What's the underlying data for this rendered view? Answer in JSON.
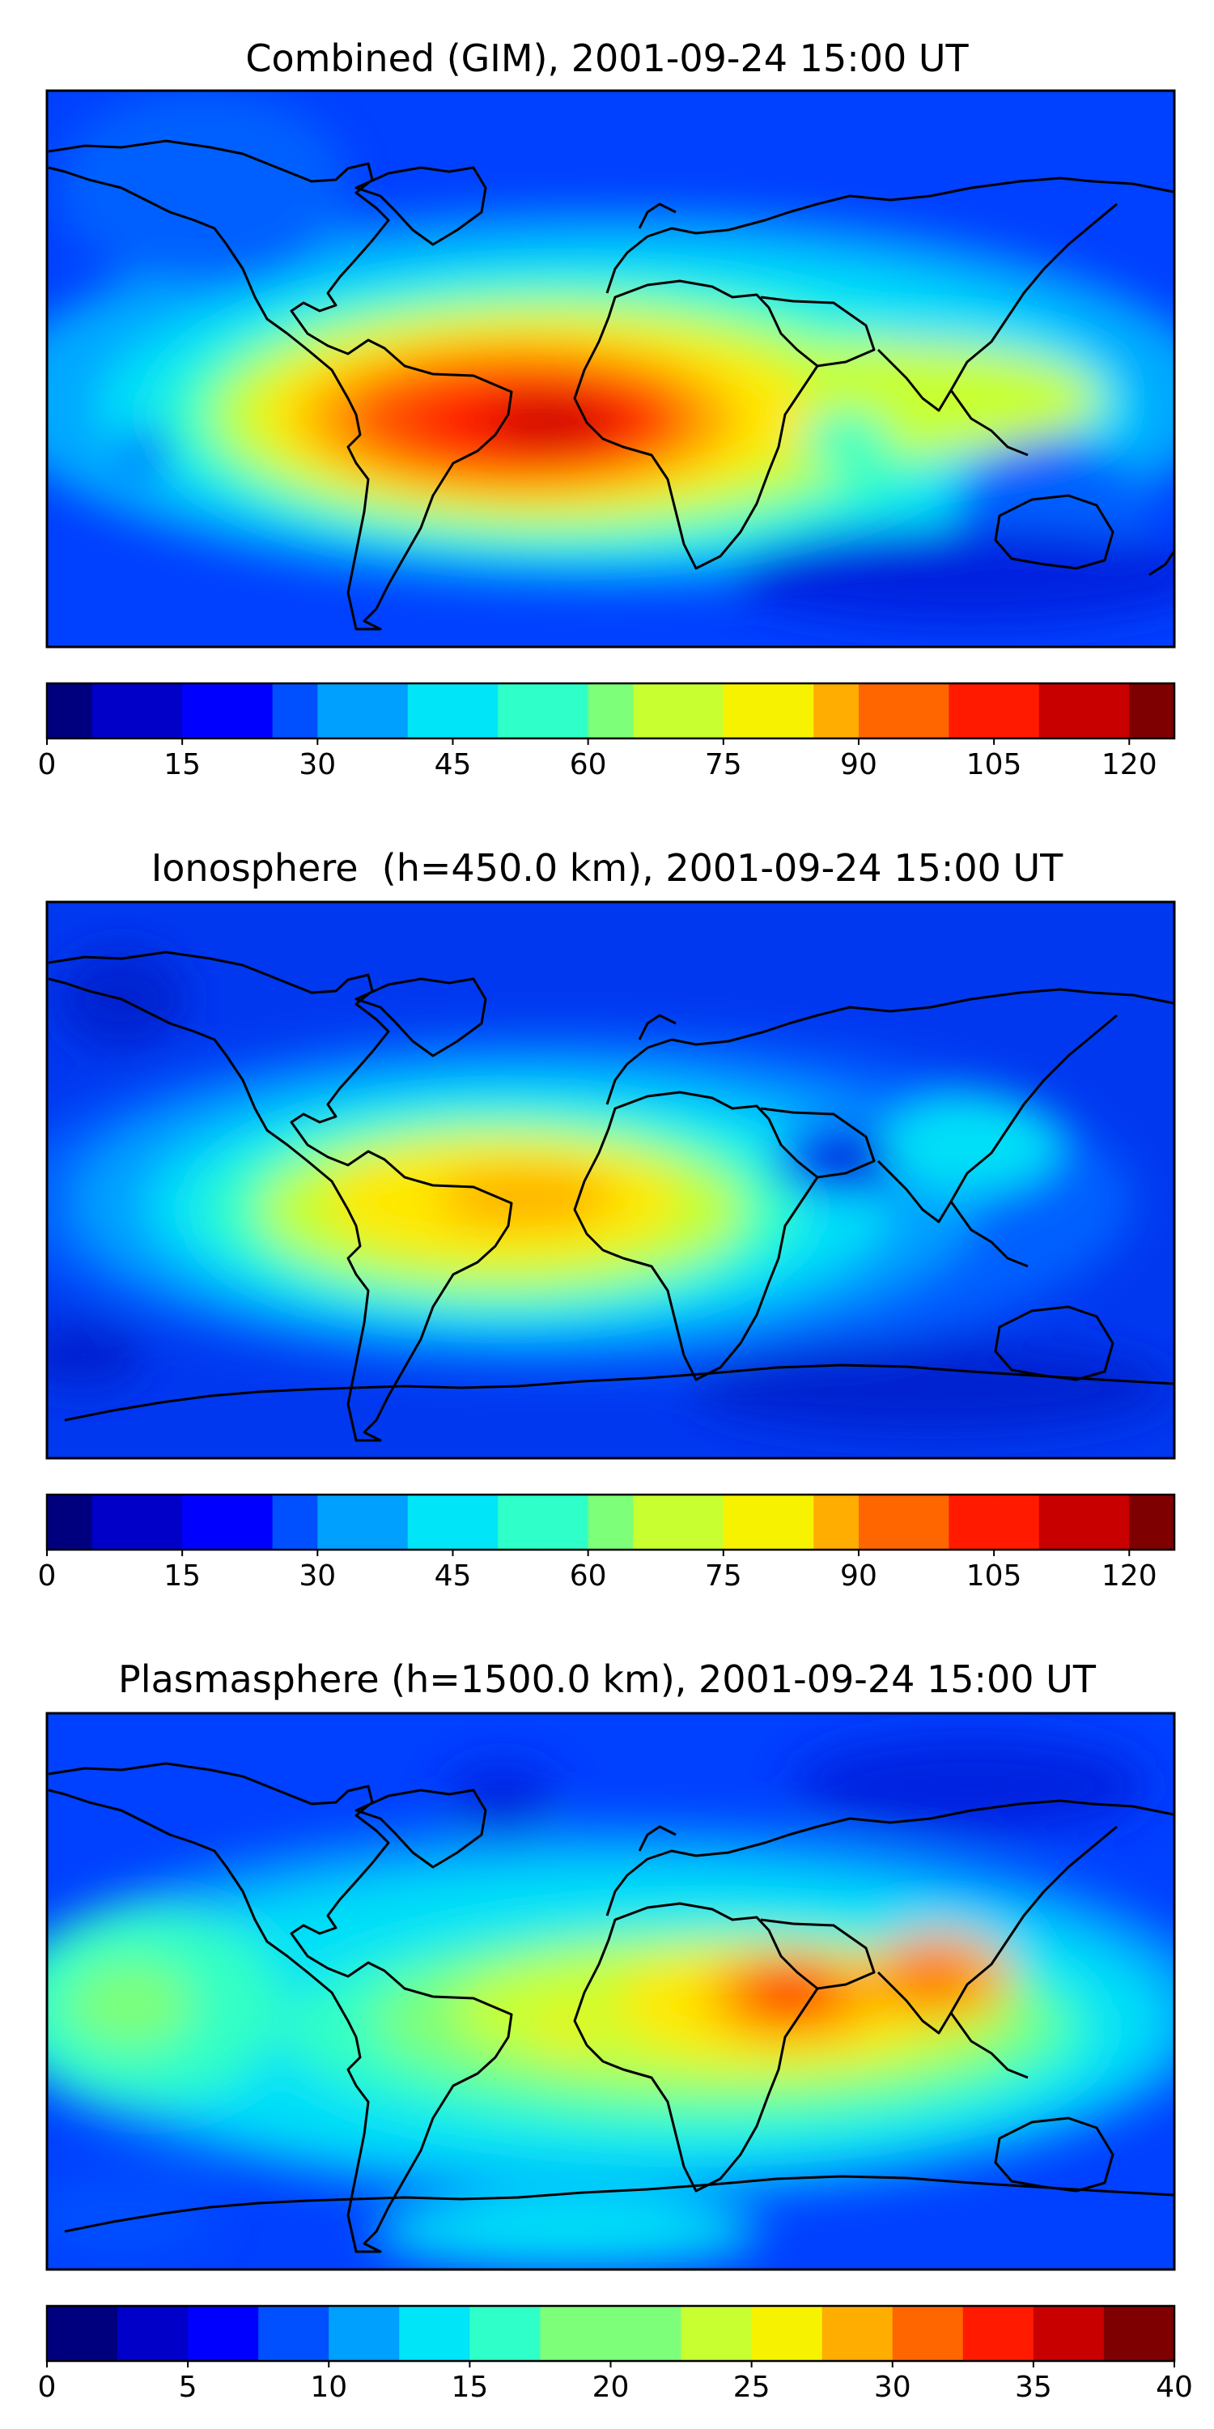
{
  "colormap": [
    "#00007f",
    "#0000c8",
    "#0000ff",
    "#0050ff",
    "#00a0ff",
    "#00e5f7",
    "#2fffc8",
    "#7dff79",
    "#c8ff30",
    "#f7f300",
    "#ffad00",
    "#ff6600",
    "#ff1a00",
    "#c80000",
    "#7f0000"
  ],
  "coastline_color": "#000000",
  "chart_data": [
    {
      "type": "heatmap",
      "title": "Combined (GIM), 2001-09-24 15:00 UT",
      "colorbar": {
        "levels": [
          0,
          5,
          10,
          15,
          20,
          25,
          30,
          35,
          40,
          45,
          50,
          55,
          60,
          65,
          70,
          75,
          80,
          85,
          90,
          95,
          100,
          105,
          110,
          115,
          120,
          125
        ],
        "ticks": [
          0,
          15,
          30,
          45,
          60,
          75,
          90,
          105,
          120
        ],
        "range": [
          0,
          125
        ]
      },
      "projection": "plate-carree",
      "grid": false,
      "colorbar_position": "bottom",
      "features": [
        {
          "label": "equatorial anomaly crest over South America / South Atlantic / Africa",
          "value": 115
        },
        {
          "label": "secondary crest over Indian Ocean / SE Asia",
          "value": 80
        },
        {
          "label": "polar regions",
          "value": 12
        }
      ]
    },
    {
      "type": "heatmap",
      "title": "Ionosphere  (h=450.0 km), 2001-09-24 15:00 UT",
      "colorbar": {
        "levels": [
          0,
          5,
          10,
          15,
          20,
          25,
          30,
          35,
          40,
          45,
          50,
          55,
          60,
          65,
          70,
          75,
          80,
          85,
          90,
          95,
          100,
          105,
          110,
          115,
          120,
          125
        ],
        "ticks": [
          0,
          15,
          30,
          45,
          60,
          75,
          90,
          105,
          120
        ],
        "range": [
          0,
          125
        ]
      },
      "projection": "plate-carree",
      "grid": false,
      "colorbar_position": "bottom",
      "features": [
        {
          "label": "equatorial crest over South America / South Atlantic",
          "value": 92
        },
        {
          "label": "low over Arabian Sea",
          "value": 8
        },
        {
          "label": "polar regions",
          "value": 10
        }
      ]
    },
    {
      "type": "heatmap",
      "title": "Plasmasphere (h=1500.0 km), 2001-09-24 15:00 UT",
      "colorbar": {
        "levels": [
          0,
          2.5,
          5,
          7.5,
          10,
          12.5,
          15,
          17.5,
          20,
          22.5,
          25,
          27.5,
          30,
          32.5,
          35,
          37.5,
          40
        ],
        "ticks": [
          0,
          5,
          10,
          15,
          20,
          25,
          30,
          35,
          40
        ],
        "range": [
          0,
          40
        ]
      },
      "projection": "plate-carree",
      "grid": false,
      "colorbar_position": "bottom",
      "features": [
        {
          "label": "maximum over East Africa / Arabian Sea",
          "value": 34
        },
        {
          "label": "secondary maximum over SE Asia",
          "value": 30
        },
        {
          "label": "polar regions",
          "value": 8
        }
      ]
    }
  ]
}
